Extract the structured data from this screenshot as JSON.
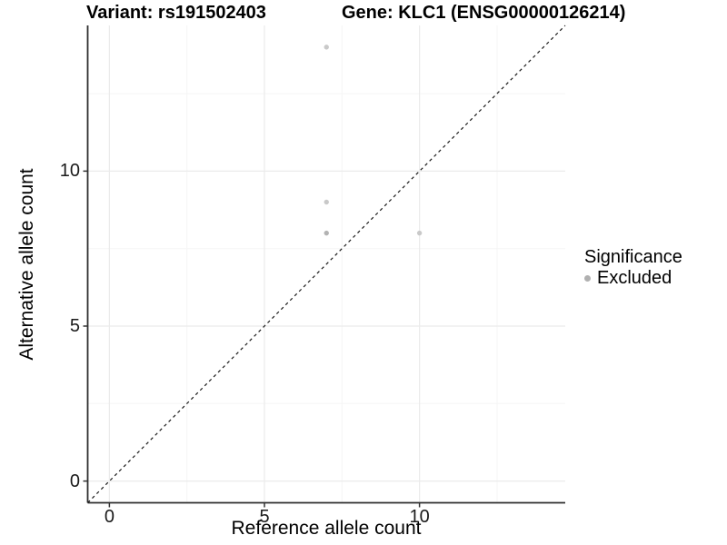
{
  "chart_data": {
    "type": "scatter",
    "title_left": "Variant: rs191502403",
    "title_right": "Gene: KLC1 (ENSG00000126214)",
    "xlabel": "Reference allele count",
    "ylabel": "Alternative allele count",
    "xlim": [
      -0.7,
      14.7
    ],
    "ylim": [
      -0.7,
      14.7
    ],
    "x_ticks": [
      0,
      5,
      10
    ],
    "y_ticks": [
      0,
      5,
      10
    ],
    "x_minor_ticks": [
      2.5,
      7.5,
      12.5
    ],
    "y_minor_ticks": [
      2.5,
      7.5,
      12.5
    ],
    "grid": true,
    "identity_line": {
      "slope": 1,
      "intercept": 0,
      "style": "dashed",
      "color": "#1a1a1a"
    },
    "series": [
      {
        "name": "Excluded",
        "color": "#c7c7c7",
        "points": [
          {
            "x": 7,
            "y": 14,
            "color": "#c9c9c9"
          },
          {
            "x": 7,
            "y": 9,
            "color": "#c9c9c9"
          },
          {
            "x": 7,
            "y": 8,
            "color": "#b3b3b3"
          },
          {
            "x": 10,
            "y": 8,
            "color": "#c9c9c9"
          }
        ]
      }
    ],
    "legend": {
      "position": "right",
      "title": "Significance",
      "items": [
        {
          "label": "Excluded",
          "color": "#b0b0b0"
        }
      ]
    },
    "colors": {
      "background": "#ffffff",
      "axis_line": "#2e2e2e",
      "tick_mark": "#333333",
      "major_grid": "#ebebeb",
      "minor_grid": "#f5f5f5",
      "point_default": "#c9c9c9"
    }
  }
}
